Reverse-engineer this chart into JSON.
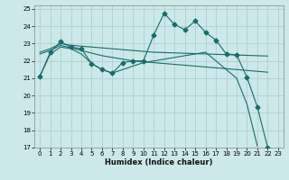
{
  "xlabel": "Humidex (Indice chaleur)",
  "xlim": [
    -0.5,
    23.5
  ],
  "ylim": [
    17,
    25.2
  ],
  "yticks": [
    17,
    18,
    19,
    20,
    21,
    22,
    23,
    24,
    25
  ],
  "xticks": [
    0,
    1,
    2,
    3,
    4,
    5,
    6,
    7,
    8,
    9,
    10,
    11,
    12,
    13,
    14,
    15,
    16,
    17,
    18,
    19,
    20,
    21,
    22,
    23
  ],
  "bg_color": "#cce8e8",
  "grid_color": "#b0d0d0",
  "line_color": "#1a6b6b",
  "lines": [
    {
      "x": [
        0,
        1,
        2,
        3,
        4,
        5,
        6,
        7,
        8,
        9,
        10,
        11,
        12,
        13,
        14,
        15,
        16,
        17,
        18,
        19,
        20,
        21,
        22,
        23
      ],
      "y": [
        21.1,
        22.5,
        23.1,
        22.8,
        22.7,
        21.85,
        21.5,
        21.3,
        21.9,
        22.0,
        22.0,
        23.5,
        24.75,
        24.1,
        23.8,
        24.3,
        23.65,
        23.2,
        22.4,
        22.35,
        21.05,
        19.35,
        17.0,
        null
      ],
      "marker": true,
      "markersize": 2.5
    },
    {
      "x": [
        0,
        1,
        2,
        3,
        4,
        5,
        6,
        7,
        8,
        9,
        10,
        11,
        12,
        13,
        14,
        15,
        16,
        17,
        18,
        19,
        20,
        21,
        22,
        23
      ],
      "y": [
        22.5,
        22.7,
        23.0,
        22.9,
        22.85,
        22.8,
        22.75,
        22.7,
        22.65,
        22.6,
        22.55,
        22.5,
        22.48,
        22.46,
        22.44,
        22.42,
        22.4,
        22.38,
        22.36,
        22.34,
        22.32,
        22.3,
        22.28,
        null
      ],
      "marker": false,
      "markersize": 0
    },
    {
      "x": [
        0,
        1,
        2,
        3,
        4,
        5,
        6,
        7,
        8,
        9,
        10,
        11,
        12,
        13,
        14,
        15,
        16,
        17,
        18,
        19,
        20,
        21,
        22,
        23
      ],
      "y": [
        22.4,
        22.6,
        22.9,
        22.75,
        22.6,
        22.45,
        22.3,
        22.2,
        22.1,
        22.0,
        21.95,
        21.9,
        21.85,
        21.8,
        21.75,
        21.7,
        21.65,
        21.6,
        21.55,
        21.5,
        21.45,
        21.4,
        21.35,
        null
      ],
      "marker": false,
      "markersize": 0
    },
    {
      "x": [
        0,
        1,
        2,
        3,
        4,
        5,
        6,
        7,
        8,
        9,
        10,
        11,
        12,
        13,
        14,
        15,
        16,
        17,
        18,
        19,
        20,
        21,
        22,
        23
      ],
      "y": [
        21.1,
        22.4,
        22.8,
        22.7,
        22.4,
        21.85,
        21.5,
        21.3,
        21.5,
        21.7,
        21.9,
        22.0,
        22.1,
        22.2,
        22.3,
        22.4,
        22.5,
        22.0,
        21.5,
        21.0,
        19.5,
        17.1,
        null,
        null
      ],
      "marker": false,
      "markersize": 0
    }
  ]
}
